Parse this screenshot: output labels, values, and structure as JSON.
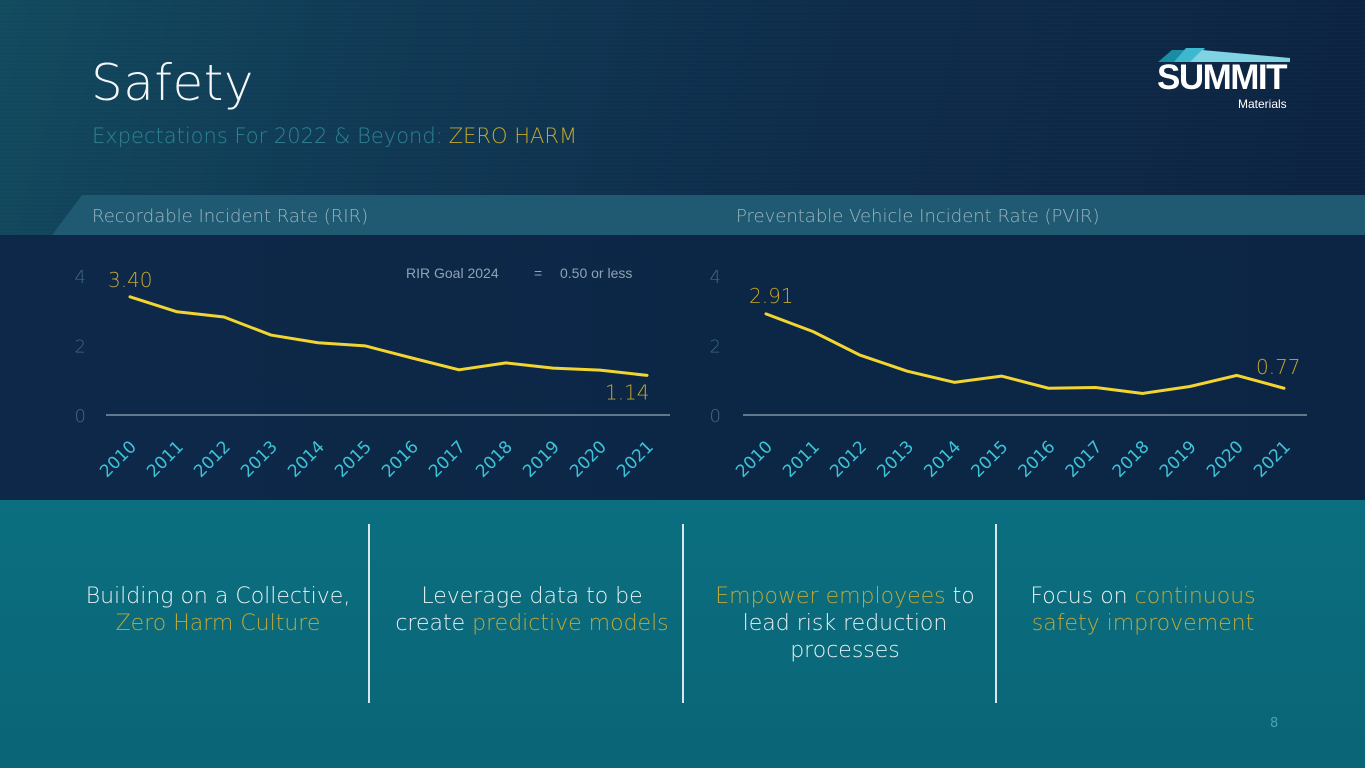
{
  "header": {
    "title": "Safety",
    "subtitle": "Expectations For 2022 & Beyond:",
    "subtitle_highlight": "ZERO HARM"
  },
  "logo": {
    "name": "SUMMIT",
    "sub": "Materials"
  },
  "charts_section": {
    "left_title": "Recordable Incident Rate (RIR)",
    "right_title": "Preventable Vehicle Incident Rate (PVIR)",
    "goal_text": "RIR Goal 2024",
    "goal_eq": "=",
    "goal_value": "0.50 or less"
  },
  "chart_data": [
    {
      "type": "line",
      "title": "Recordable Incident Rate (RIR)",
      "x": [
        "2010",
        "2011",
        "2012",
        "2013",
        "2014",
        "2015",
        "2016",
        "2017",
        "2018",
        "2019",
        "2020",
        "2021"
      ],
      "series": [
        {
          "values": [
            3.4,
            2.97,
            2.82,
            2.3,
            2.08,
            1.99,
            1.64,
            1.3,
            1.5,
            1.35,
            1.29,
            1.14
          ]
        }
      ],
      "ylim": [
        0,
        4
      ],
      "yticks": [
        "0",
        "2",
        "4"
      ],
      "labels": [
        {
          "index": 0,
          "text": "3.40"
        },
        {
          "index": 11,
          "text": "1.14"
        }
      ],
      "line_color": "#f2d531",
      "grid": false
    },
    {
      "type": "line",
      "title": "Preventable Vehicle Incident Rate (PVIR)",
      "x": [
        "2010",
        "2011",
        "2012",
        "2013",
        "2014",
        "2015",
        "2016",
        "2017",
        "2018",
        "2019",
        "2020",
        "2021"
      ],
      "series": [
        {
          "values": [
            2.91,
            2.4,
            1.72,
            1.26,
            0.94,
            1.12,
            0.77,
            0.79,
            0.62,
            0.82,
            1.14,
            0.77
          ]
        }
      ],
      "ylim": [
        0,
        4
      ],
      "yticks": [
        "0",
        "2",
        "4"
      ],
      "labels": [
        {
          "index": 0,
          "text": "2.91"
        },
        {
          "index": 11,
          "text": "0.77"
        }
      ],
      "line_color": "#f2d531",
      "grid": false
    }
  ],
  "pillars": [
    {
      "plain_before": "Building on a Collective, ",
      "highlight": "Zero Harm Culture",
      "plain_after": ""
    },
    {
      "plain_before": "Leverage data to be create ",
      "highlight": "predictive models",
      "plain_after": ""
    },
    {
      "plain_before": "",
      "highlight": "Empower employees",
      "plain_after": " to lead risk reduction processes"
    },
    {
      "plain_before": "Focus on ",
      "highlight": "continuous safety improvement",
      "plain_after": ""
    }
  ],
  "page_number": "8",
  "colors": {
    "accent_gold": "#c4a72c",
    "line_yellow": "#f2d531",
    "teal": "#0b6f80"
  }
}
